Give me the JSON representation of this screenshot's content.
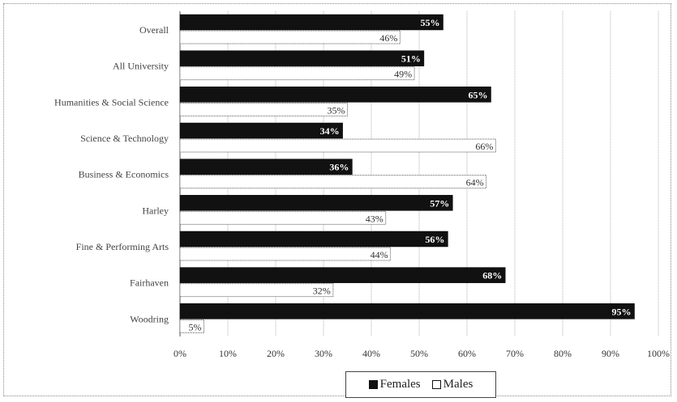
{
  "chart_data": {
    "type": "bar",
    "orientation": "horizontal",
    "categories": [
      "Overall",
      "All University",
      "Humanities & Social Science",
      "Science & Technology",
      "Business & Economics",
      "Harley",
      "Fine & Performing Arts",
      "Fairhaven",
      "Woodring"
    ],
    "series": [
      {
        "name": "Females",
        "values": [
          55,
          51,
          65,
          34,
          36,
          57,
          56,
          68,
          95
        ],
        "color": "#111111"
      },
      {
        "name": "Males",
        "values": [
          46,
          49,
          35,
          66,
          64,
          43,
          44,
          32,
          5
        ],
        "color": "#ffffff"
      }
    ],
    "value_labels": {
      "Females": [
        "55%",
        "51%",
        "65%",
        "34%",
        "36%",
        "57%",
        "56%",
        "68%",
        "95%"
      ],
      "Males": [
        "46%",
        "49%",
        "35%",
        "66%",
        "64%",
        "43%",
        "44%",
        "32%",
        "5%"
      ]
    },
    "x_ticks": [
      "0%",
      "10%",
      "20%",
      "30%",
      "40%",
      "50%",
      "60%",
      "70%",
      "80%",
      "90%",
      "100%"
    ],
    "xlim": [
      0,
      100
    ],
    "grid": true,
    "legend_position": "bottom"
  }
}
